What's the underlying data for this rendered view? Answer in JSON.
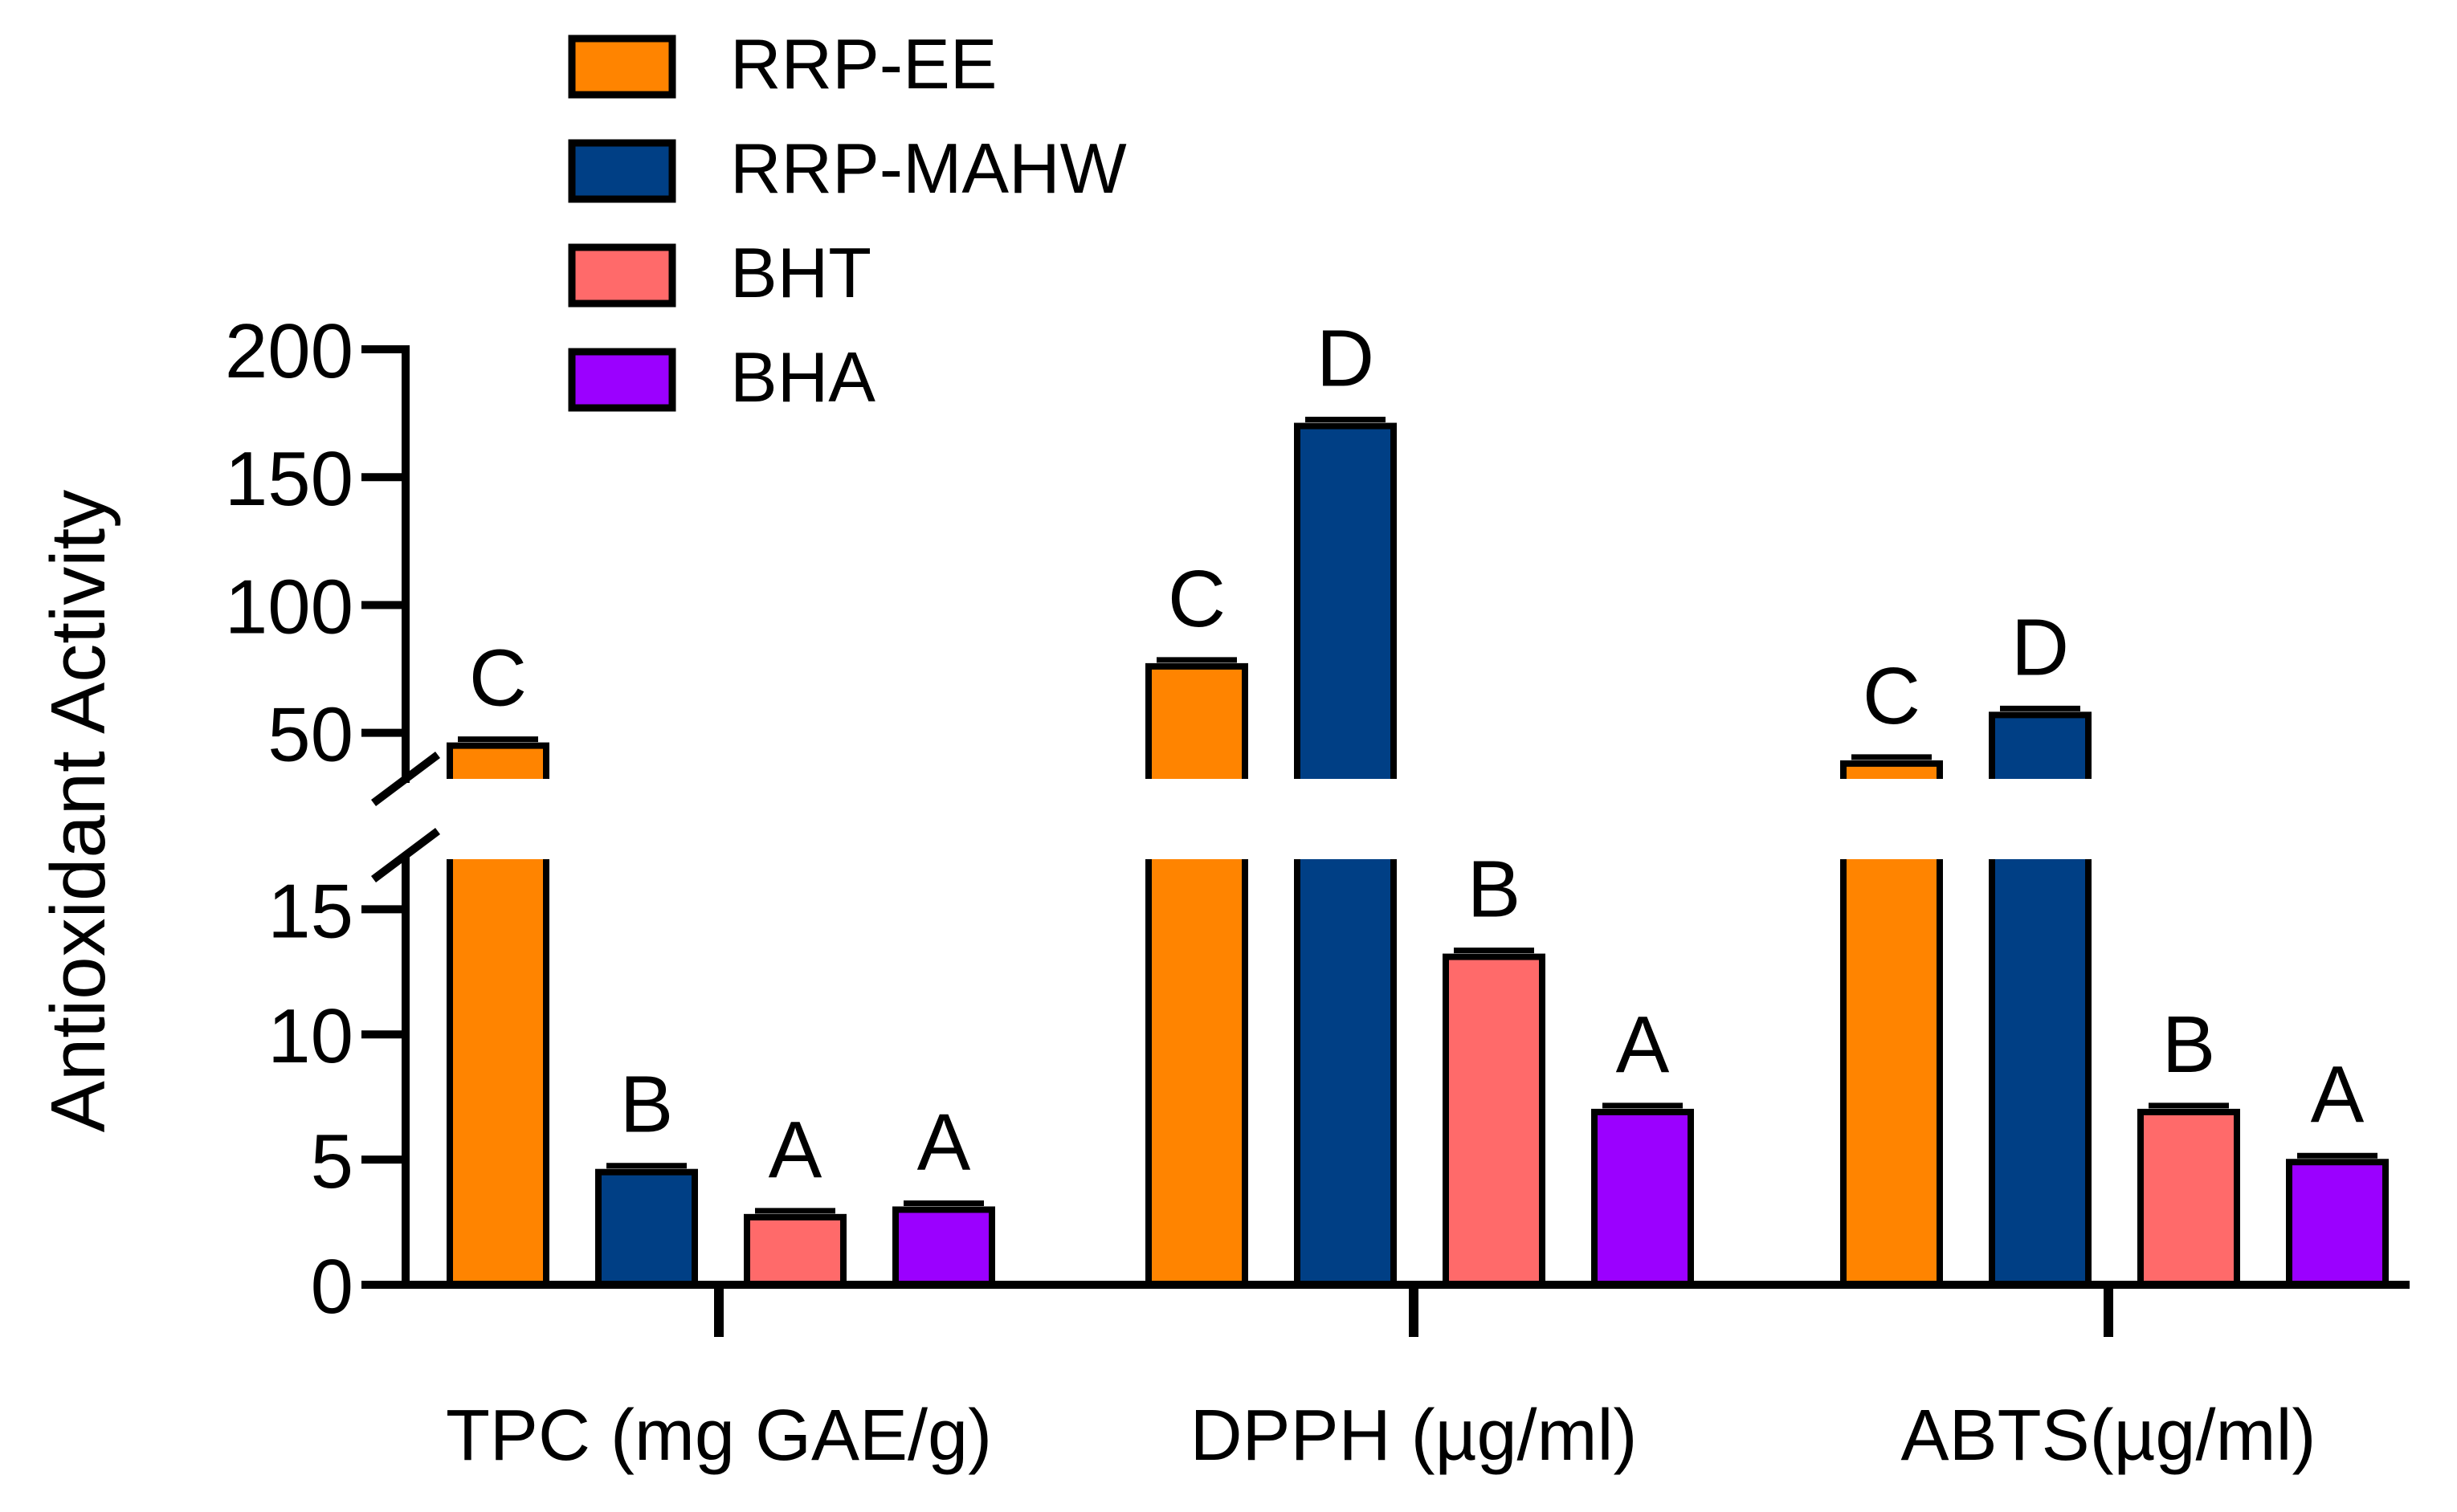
{
  "chart_data": {
    "type": "bar",
    "ylabel": "Antioxidant Activity",
    "categories": [
      "TPC (mg GAE/g)",
      "DPPH (µg/ml)",
      "ABTS(µg/ml)"
    ],
    "axis_break": {
      "lower_range": [
        0,
        17
      ],
      "upper_range": [
        32,
        200
      ]
    },
    "lower_ticks": [
      "0",
      "5",
      "10",
      "15"
    ],
    "upper_ticks": [
      "50",
      "100",
      "150",
      "200"
    ],
    "series": [
      {
        "name": "RRP-EE",
        "color": "#ff8400",
        "values": [
          45,
          76,
          38
        ],
        "letters": [
          "C",
          "C",
          "C"
        ]
      },
      {
        "name": "RRP-MAHW",
        "color": "#003f85",
        "values": [
          4.5,
          170,
          57
        ],
        "letters": [
          "B",
          "D",
          "D"
        ]
      },
      {
        "name": "BHT",
        "color": "#ff6a6a",
        "values": [
          2.7,
          13.1,
          6.9
        ],
        "letters": [
          "A",
          "B",
          "B"
        ]
      },
      {
        "name": "BHA",
        "color": "#9b00ff",
        "values": [
          3.0,
          6.9,
          4.9
        ],
        "letters": [
          "A",
          "A",
          "A"
        ]
      }
    ],
    "legend_position": "top-left"
  }
}
